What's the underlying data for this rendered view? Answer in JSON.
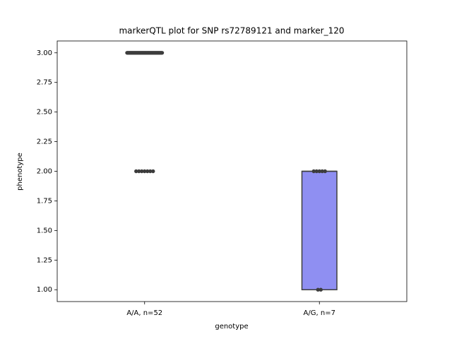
{
  "chart_data": {
    "type": "box",
    "title": "markerQTL plot for SNP rs72789121 and marker_120",
    "x_label": "genotype",
    "y_label": "phenotype",
    "categories": [
      "A/A, n=52",
      "A/G, n=7"
    ],
    "boxes": [
      {
        "q1": 3,
        "median": 3,
        "q3": 3,
        "whislo": 3,
        "whishi": 3,
        "color": "#8f8ff2",
        "points": [
          3,
          3,
          3,
          3,
          3,
          3,
          3,
          3,
          3,
          3,
          3,
          3,
          3,
          3,
          3,
          3,
          3,
          3,
          3,
          3,
          3,
          3,
          3,
          3,
          3,
          3,
          3,
          3,
          3,
          3,
          3,
          3,
          3,
          3,
          3,
          3,
          3,
          3,
          3,
          3,
          3,
          3,
          3,
          3,
          3,
          2,
          2,
          2,
          2,
          2,
          2,
          2
        ]
      },
      {
        "q1": 1,
        "median": 2,
        "q3": 2,
        "whislo": 1,
        "whishi": 2,
        "color": "#8f8ff2",
        "points": [
          1,
          1,
          2,
          2,
          2,
          2,
          2
        ]
      }
    ],
    "point_color": "#3c3c3c",
    "ylim": [
      0.9,
      3.1
    ],
    "yticks": [
      {
        "value": 1,
        "label": "1.00"
      },
      {
        "value": 1.25,
        "label": "1.25"
      },
      {
        "value": 1.5,
        "label": "1.50"
      },
      {
        "value": 1.75,
        "label": "1.75"
      },
      {
        "value": 2,
        "label": "2.00"
      },
      {
        "value": 2.25,
        "label": "2.25"
      },
      {
        "value": 2.5,
        "label": "2.50"
      },
      {
        "value": 2.75,
        "label": "2.75"
      },
      {
        "value": 3,
        "label": "3.00"
      }
    ]
  }
}
